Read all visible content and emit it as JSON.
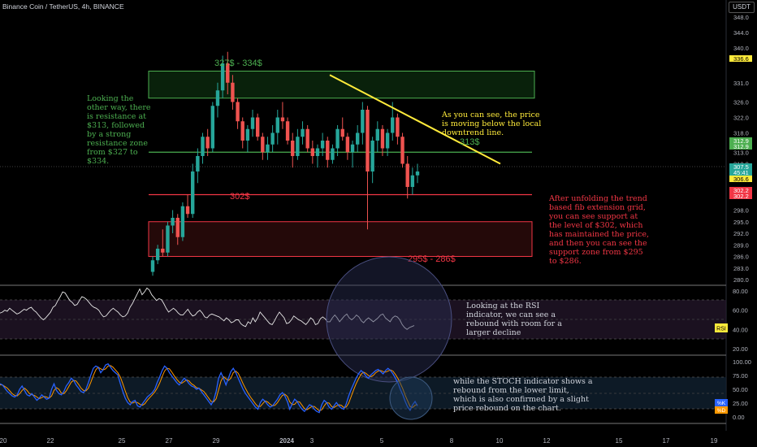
{
  "header": {
    "symbol_title": "Binance Coin / TetherUS, 4h, BINANCE",
    "currency": "USDT"
  },
  "colors": {
    "up": "#26a69a",
    "down": "#ef5350",
    "green_text": "#4caf50",
    "red_text": "#f23645",
    "yellow": "#ffeb3b",
    "rsi_line": "#e6e6e6",
    "k_line": "#2962ff",
    "d_line": "#ff9800"
  },
  "price_axis": {
    "ticks": [
      "348.0",
      "344.0",
      "340.0",
      "336.6",
      "331.0",
      "326.0",
      "322.0",
      "318.0",
      "313.0",
      "310.0",
      "307.5",
      "306.6",
      "302.2",
      "298.0",
      "295.0",
      "292.0",
      "289.0",
      "286.0",
      "283.0",
      "280.0"
    ]
  },
  "price_badges": [
    {
      "text": "336.6",
      "color": "#ffeb3b",
      "fg": "#000"
    },
    {
      "text": "312.9",
      "color": "#4caf50",
      "fg": "#fff"
    },
    {
      "text": "312.9",
      "color": "#4caf50",
      "fg": "#fff"
    },
    {
      "text": "307.5",
      "color": "#26a69a",
      "fg": "#fff"
    },
    {
      "text": "45:41",
      "color": "#26a69a",
      "fg": "#fff"
    },
    {
      "text": "306.6",
      "color": "#ffeb3b",
      "fg": "#000"
    },
    {
      "text": "302.2",
      "color": "#f23645",
      "fg": "#fff"
    },
    {
      "text": "302.2",
      "color": "#f23645",
      "fg": "#fff"
    }
  ],
  "time_axis": {
    "ticks": [
      "20",
      "22",
      "25",
      "27",
      "29",
      "2024",
      "3",
      "5",
      "8",
      "10",
      "12",
      "15",
      "17",
      "19"
    ]
  },
  "zones": {
    "resistance": {
      "label": "327$ - 334$",
      "from": 327,
      "to": 334
    },
    "support": {
      "label": "295$ - 286$",
      "from": 286,
      "to": 295
    }
  },
  "levels": {
    "resistance": {
      "label": "313$",
      "value": 313
    },
    "support": {
      "label": "302$",
      "value": 302
    }
  },
  "annotations": {
    "left": "Looking the other way, there is resistance at $313, followed by a strong resistance zone from $327 to $334.",
    "trend": "As you can see, the price is moving below the local downtrend line.",
    "fib": "After unfolding the trend based fib extension grid, you can see support at the level of $302, which has maintained the price, and then you can see the support zone from $295 to $286.",
    "rsi": "Looking at the RSI indicator, we can see a rebound with room for a larger decline",
    "stoch": "while the STOCH indicator shows a rebound from the lower limit, which is also confirmed by a slight price rebound on the chart."
  },
  "rsi": {
    "axis": [
      "80.00",
      "60.00",
      "40.00",
      "20.00"
    ],
    "badge": "RSI"
  },
  "stoch": {
    "axis": [
      "100.00",
      "75.00",
      "50.00",
      "25.00",
      "0.00"
    ],
    "badges": [
      "%K",
      "%D"
    ]
  },
  "chart_data": [
    {
      "type": "candlestick",
      "title": "Binance Coin / TetherUS, 4h, BINANCE",
      "ylim": [
        279,
        350
      ],
      "y_scale": "linear",
      "grid": false,
      "ohlc": [
        [
          282,
          286,
          281,
          285
        ],
        [
          285,
          289,
          284,
          288
        ],
        [
          288,
          293,
          286,
          287
        ],
        [
          287,
          295,
          286,
          294
        ],
        [
          294,
          298,
          292,
          296
        ],
        [
          296,
          297,
          289,
          291
        ],
        [
          291,
          300,
          290,
          299
        ],
        [
          299,
          302,
          296,
          297
        ],
        [
          297,
          310,
          296,
          308
        ],
        [
          308,
          314,
          305,
          312
        ],
        [
          312,
          318,
          310,
          317
        ],
        [
          317,
          319,
          312,
          314
        ],
        [
          314,
          326,
          313,
          325
        ],
        [
          325,
          331,
          322,
          329
        ],
        [
          329,
          338,
          327,
          336
        ],
        [
          336,
          339,
          328,
          331
        ],
        [
          331,
          333,
          324,
          326
        ],
        [
          326,
          327,
          319,
          321
        ],
        [
          321,
          322,
          314,
          316
        ],
        [
          316,
          320,
          313,
          319
        ],
        [
          319,
          324,
          317,
          322
        ],
        [
          322,
          323,
          316,
          317
        ],
        [
          317,
          318,
          311,
          313
        ],
        [
          313,
          317,
          311,
          315
        ],
        [
          315,
          320,
          313,
          318
        ],
        [
          318,
          324,
          315,
          322
        ],
        [
          322,
          326,
          319,
          321
        ],
        [
          321,
          322,
          315,
          316
        ],
        [
          316,
          318,
          309,
          312
        ],
        [
          312,
          319,
          311,
          317
        ],
        [
          317,
          321,
          315,
          319
        ],
        [
          319,
          320,
          313,
          314
        ],
        [
          314,
          316,
          310,
          312
        ],
        [
          312,
          315,
          309,
          314
        ],
        [
          314,
          318,
          312,
          316
        ],
        [
          316,
          317,
          309,
          311
        ],
        [
          311,
          315,
          310,
          314
        ],
        [
          314,
          320,
          312,
          319
        ],
        [
          319,
          322,
          316,
          317
        ],
        [
          317,
          318,
          311,
          313
        ],
        [
          313,
          316,
          309,
          315
        ],
        [
          315,
          320,
          313,
          318
        ],
        [
          318,
          326,
          315,
          324
        ],
        [
          324,
          325,
          293,
          308
        ],
        [
          308,
          317,
          305,
          316
        ],
        [
          316,
          321,
          313,
          319
        ],
        [
          319,
          320,
          312,
          314
        ],
        [
          314,
          319,
          312,
          318
        ],
        [
          318,
          326,
          316,
          322
        ],
        [
          322,
          323,
          315,
          317
        ],
        [
          317,
          318,
          309,
          310
        ],
        [
          310,
          312,
          301,
          304
        ],
        [
          304,
          309,
          302,
          307
        ],
        [
          307,
          310,
          305,
          308
        ]
      ],
      "series": [
        {
          "name": "",
          "type": "trendline",
          "points": [
            [
              347,
              333
            ],
            [
              393,
              310
            ]
          ]
        },
        {
          "name": "",
          "type": "hline",
          "value": 313
        },
        {
          "name": "",
          "type": "hline",
          "value": 302
        }
      ]
    },
    {
      "type": "line",
      "title": "",
      "ylabel": "",
      "ylim": [
        15,
        88
      ],
      "series": [
        {
          "name": "RSI",
          "values": [
            57,
            58,
            60,
            59,
            62,
            60,
            58,
            56,
            57,
            59,
            61,
            60,
            62,
            63,
            60,
            58,
            55,
            52,
            50,
            52,
            55,
            58,
            63,
            65,
            70,
            74,
            79,
            78,
            74,
            70,
            68,
            65,
            66,
            70,
            74,
            73,
            71,
            68,
            65,
            63,
            62,
            60,
            56,
            53,
            54,
            57,
            60,
            62,
            60,
            58,
            55,
            53,
            54,
            57,
            63,
            67,
            72,
            77,
            82,
            76,
            79,
            83,
            81,
            76,
            73,
            70,
            72,
            71,
            67,
            62,
            58,
            60,
            62,
            60,
            57,
            55,
            55,
            58,
            61,
            57,
            54,
            55,
            58,
            60,
            57,
            53,
            52,
            55,
            56,
            55,
            54,
            53,
            51,
            49,
            52,
            50,
            47,
            48,
            50,
            50,
            46,
            44,
            43,
            48,
            46,
            52,
            48,
            52,
            58,
            55,
            52,
            49,
            46,
            45,
            49,
            54,
            58,
            55,
            52,
            46,
            47,
            50,
            54,
            52,
            50,
            49,
            47,
            45,
            48,
            52,
            50,
            45,
            46,
            51,
            53,
            51,
            48,
            48,
            52,
            55,
            52,
            48,
            51,
            54,
            56,
            52,
            50,
            52,
            55,
            53,
            49,
            47,
            50,
            52,
            50,
            48,
            50,
            52,
            55,
            56,
            52,
            50,
            48,
            52,
            54,
            53,
            50,
            45,
            42,
            40,
            42,
            43,
            44
          ]
        }
      ]
    },
    {
      "type": "line",
      "title": "",
      "ylim": [
        -5,
        108
      ],
      "series": [
        {
          "name": "%K",
          "values": [
            60,
            58,
            52,
            46,
            42,
            38,
            36,
            40,
            50,
            56,
            48,
            40,
            38,
            42,
            36,
            30,
            34,
            40,
            36,
            32,
            34,
            50,
            60,
            48,
            42,
            40,
            46,
            56,
            62,
            70,
            66,
            58,
            52,
            46,
            44,
            50,
            62,
            76,
            88,
            92,
            90,
            80,
            86,
            94,
            96,
            90,
            84,
            80,
            76,
            60,
            46,
            34,
            26,
            22,
            28,
            30,
            20,
            18,
            24,
            30,
            36,
            40,
            44,
            50,
            62,
            72,
            84,
            92,
            88,
            80,
            74,
            68,
            62,
            58,
            64,
            70,
            66,
            60,
            56,
            54,
            50,
            52,
            46,
            40,
            34,
            28,
            22,
            30,
            46,
            70,
            80,
            70,
            58,
            70,
            82,
            88,
            80,
            70,
            60,
            50,
            42,
            36,
            30,
            24,
            18,
            14,
            26,
            32,
            28,
            22,
            18,
            20,
            26,
            32,
            40,
            44,
            38,
            28,
            14,
            24,
            32,
            28,
            20,
            14,
            10,
            16,
            22,
            20,
            14,
            10,
            8,
            22,
            30,
            26,
            18,
            14,
            20,
            26,
            20,
            16,
            14,
            24,
            38,
            50,
            60,
            70,
            78,
            84,
            80,
            74,
            70,
            76,
            80,
            84,
            86,
            82,
            78,
            84,
            88,
            84,
            78,
            70,
            62,
            50,
            40,
            28,
            18,
            12,
            22,
            28,
            20
          ]
        },
        {
          "name": "%D",
          "values": [
            58,
            58,
            55,
            52,
            47,
            42,
            39,
            38,
            42,
            48,
            52,
            48,
            42,
            40,
            39,
            36,
            33,
            35,
            37,
            36,
            34,
            38,
            48,
            53,
            50,
            43,
            42,
            47,
            55,
            63,
            66,
            65,
            59,
            52,
            48,
            47,
            52,
            63,
            75,
            85,
            90,
            87,
            85,
            87,
            92,
            93,
            90,
            85,
            80,
            72,
            60,
            47,
            35,
            27,
            25,
            27,
            26,
            23,
            21,
            24,
            30,
            35,
            40,
            45,
            52,
            61,
            73,
            83,
            88,
            87,
            81,
            74,
            68,
            63,
            61,
            64,
            67,
            65,
            60,
            57,
            53,
            52,
            49,
            46,
            40,
            34,
            28,
            27,
            33,
            49,
            65,
            73,
            69,
            66,
            70,
            80,
            83,
            79,
            70,
            60,
            51,
            43,
            36,
            30,
            24,
            19,
            19,
            24,
            29,
            27,
            23,
            20,
            21,
            26,
            33,
            39,
            41,
            37,
            27,
            22,
            23,
            28,
            27,
            21,
            15,
            13,
            16,
            19,
            19,
            15,
            11,
            13,
            20,
            26,
            25,
            19,
            17,
            20,
            22,
            21,
            17,
            18,
            25,
            37,
            49,
            60,
            69,
            77,
            81,
            79,
            75,
            73,
            75,
            80,
            83,
            84,
            82,
            81,
            83,
            85,
            83,
            77,
            70,
            61,
            51,
            39,
            29,
            19,
            17,
            21,
            23
          ]
        }
      ]
    }
  ]
}
